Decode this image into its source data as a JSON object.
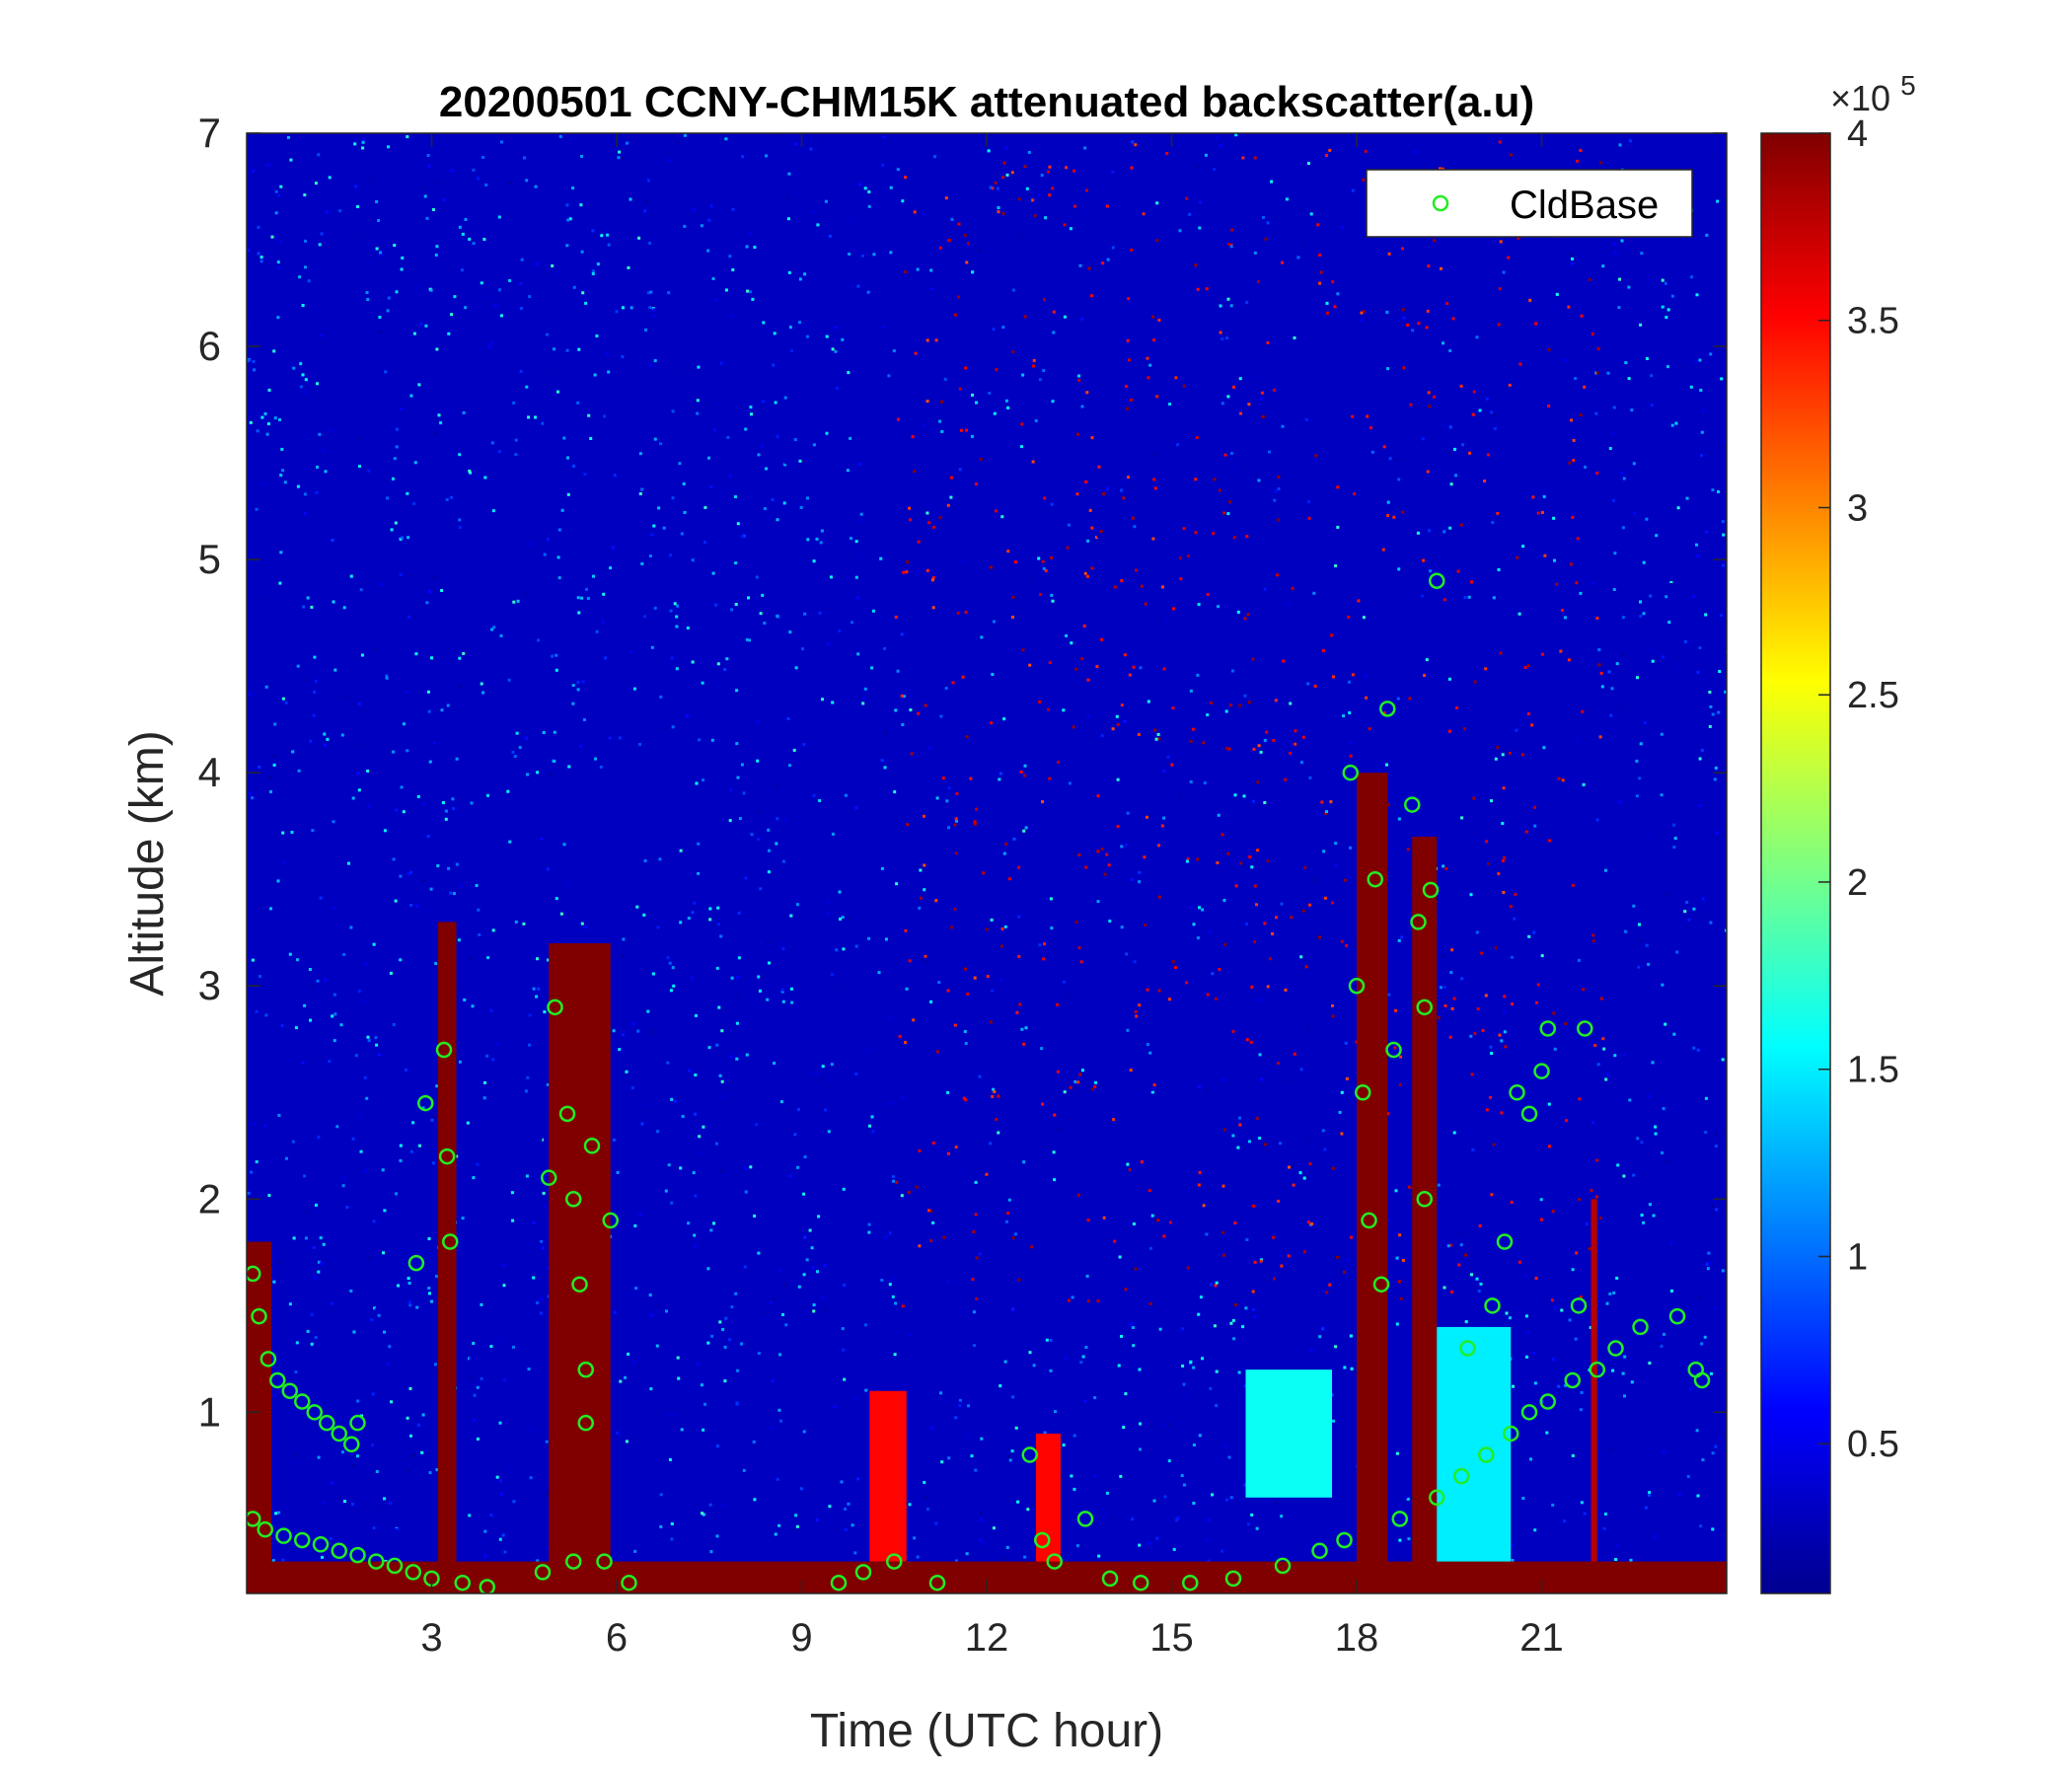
{
  "chart_data": {
    "type": "heatmap",
    "title": "20200501 CCNY-CHM15K attenuated backscatter(a.u)",
    "xlabel": "Time (UTC hour)",
    "ylabel": "Altitude (km)",
    "xlim": [
      0,
      24
    ],
    "ylim": [
      0.15,
      7
    ],
    "xticks": [
      3,
      6,
      9,
      12,
      15,
      18,
      21
    ],
    "xtick_labels": [
      "3",
      "6",
      "9",
      "12",
      "15",
      "18",
      "21"
    ],
    "yticks": [
      1,
      2,
      3,
      4,
      5,
      6,
      7
    ],
    "ytick_labels": [
      "1",
      "2",
      "3",
      "4",
      "5",
      "6",
      "7"
    ],
    "colormap": "jet",
    "colorbar": {
      "clim": [
        0.1,
        4
      ],
      "ticks": [
        0.5,
        1,
        1.5,
        2,
        2.5,
        3,
        3.5,
        4
      ],
      "tick_labels": [
        "0.5",
        "1",
        "1.5",
        "2",
        "2.5",
        "3",
        "3.5",
        "4"
      ],
      "exponent_base": "×10",
      "exponent_power": "5"
    },
    "legend": {
      "position": "top-right",
      "entries": [
        "CldBase"
      ],
      "marker": "open circle",
      "color": "#22ee22"
    },
    "grid": false,
    "background_level": 0.35,
    "high_noise_region": {
      "x": [
        10.5,
        22
      ],
      "y": [
        1.5,
        7
      ],
      "level": 3.2
    },
    "surface_layer": {
      "y": [
        0.15,
        0.3
      ],
      "level": 4
    },
    "plumes": [
      {
        "x": [
          0.0,
          0.4
        ],
        "y": [
          0.15,
          1.8
        ],
        "level": 4
      },
      {
        "x": [
          3.1,
          3.4
        ],
        "y": [
          0.15,
          3.3
        ],
        "level": 4
      },
      {
        "x": [
          4.9,
          5.9
        ],
        "y": [
          0.15,
          3.2
        ],
        "level": 4
      },
      {
        "x": [
          10.1,
          10.7
        ],
        "y": [
          0.3,
          1.1
        ],
        "level": 3.5
      },
      {
        "x": [
          12.8,
          13.2
        ],
        "y": [
          0.15,
          0.9
        ],
        "level": 3.5
      },
      {
        "x": [
          16.2,
          17.6
        ],
        "y": [
          0.6,
          1.2
        ],
        "level": 1.6
      },
      {
        "x": [
          18.0,
          18.5
        ],
        "y": [
          0.15,
          4.0
        ],
        "level": 4
      },
      {
        "x": [
          18.9,
          19.3
        ],
        "y": [
          0.15,
          3.7
        ],
        "level": 4
      },
      {
        "x": [
          19.3,
          20.5
        ],
        "y": [
          0.15,
          1.4
        ],
        "level": 1.5
      },
      {
        "x": [
          21.8,
          21.9
        ],
        "y": [
          0.15,
          2.0
        ],
        "level": 3.8
      }
    ],
    "cloud_base": [
      {
        "x": 0.1,
        "y": 1.65
      },
      {
        "x": 0.2,
        "y": 1.45
      },
      {
        "x": 0.35,
        "y": 1.25
      },
      {
        "x": 0.5,
        "y": 1.15
      },
      {
        "x": 0.7,
        "y": 1.1
      },
      {
        "x": 0.9,
        "y": 1.05
      },
      {
        "x": 1.1,
        "y": 1.0
      },
      {
        "x": 1.3,
        "y": 0.95
      },
      {
        "x": 1.5,
        "y": 0.9
      },
      {
        "x": 1.7,
        "y": 0.85
      },
      {
        "x": 1.8,
        "y": 0.95
      },
      {
        "x": 0.1,
        "y": 0.5
      },
      {
        "x": 0.3,
        "y": 0.45
      },
      {
        "x": 0.6,
        "y": 0.42
      },
      {
        "x": 0.9,
        "y": 0.4
      },
      {
        "x": 1.2,
        "y": 0.38
      },
      {
        "x": 1.5,
        "y": 0.35
      },
      {
        "x": 1.8,
        "y": 0.33
      },
      {
        "x": 2.1,
        "y": 0.3
      },
      {
        "x": 2.4,
        "y": 0.28
      },
      {
        "x": 2.7,
        "y": 0.25
      },
      {
        "x": 3.0,
        "y": 0.22
      },
      {
        "x": 3.5,
        "y": 0.2
      },
      {
        "x": 3.9,
        "y": 0.18
      },
      {
        "x": 3.2,
        "y": 2.7
      },
      {
        "x": 3.25,
        "y": 2.2
      },
      {
        "x": 3.3,
        "y": 1.8
      },
      {
        "x": 2.9,
        "y": 2.45
      },
      {
        "x": 2.75,
        "y": 1.7
      },
      {
        "x": 5.0,
        "y": 2.9
      },
      {
        "x": 5.2,
        "y": 2.4
      },
      {
        "x": 5.3,
        "y": 2.0
      },
      {
        "x": 5.4,
        "y": 1.6
      },
      {
        "x": 5.5,
        "y": 1.2
      },
      {
        "x": 5.5,
        "y": 0.95
      },
      {
        "x": 5.9,
        "y": 1.9
      },
      {
        "x": 5.6,
        "y": 2.25
      },
      {
        "x": 4.9,
        "y": 2.1
      },
      {
        "x": 4.8,
        "y": 0.25
      },
      {
        "x": 5.3,
        "y": 0.3
      },
      {
        "x": 5.8,
        "y": 0.3
      },
      {
        "x": 6.2,
        "y": 0.2
      },
      {
        "x": 9.6,
        "y": 0.2
      },
      {
        "x": 10.0,
        "y": 0.25
      },
      {
        "x": 10.5,
        "y": 0.3
      },
      {
        "x": 11.2,
        "y": 0.2
      },
      {
        "x": 12.7,
        "y": 0.8
      },
      {
        "x": 12.9,
        "y": 0.4
      },
      {
        "x": 13.1,
        "y": 0.3
      },
      {
        "x": 13.6,
        "y": 0.5
      },
      {
        "x": 14.0,
        "y": 0.22
      },
      {
        "x": 14.5,
        "y": 0.2
      },
      {
        "x": 15.3,
        "y": 0.2
      },
      {
        "x": 16.0,
        "y": 0.22
      },
      {
        "x": 16.8,
        "y": 0.28
      },
      {
        "x": 17.4,
        "y": 0.35
      },
      {
        "x": 17.8,
        "y": 0.4
      },
      {
        "x": 17.9,
        "y": 4.0
      },
      {
        "x": 18.0,
        "y": 3.0
      },
      {
        "x": 18.1,
        "y": 2.5
      },
      {
        "x": 18.2,
        "y": 1.9
      },
      {
        "x": 18.3,
        "y": 3.5
      },
      {
        "x": 18.5,
        "y": 4.3
      },
      {
        "x": 18.6,
        "y": 2.7
      },
      {
        "x": 18.4,
        "y": 1.6
      },
      {
        "x": 18.9,
        "y": 3.85
      },
      {
        "x": 19.0,
        "y": 3.3
      },
      {
        "x": 19.1,
        "y": 2.9
      },
      {
        "x": 19.2,
        "y": 3.45
      },
      {
        "x": 19.3,
        "y": 4.9
      },
      {
        "x": 19.1,
        "y": 2.0
      },
      {
        "x": 18.7,
        "y": 0.5
      },
      {
        "x": 19.3,
        "y": 0.6
      },
      {
        "x": 19.7,
        "y": 0.7
      },
      {
        "x": 20.1,
        "y": 0.8
      },
      {
        "x": 20.5,
        "y": 0.9
      },
      {
        "x": 20.8,
        "y": 1.0
      },
      {
        "x": 21.1,
        "y": 1.05
      },
      {
        "x": 21.5,
        "y": 1.15
      },
      {
        "x": 21.9,
        "y": 1.2
      },
      {
        "x": 22.2,
        "y": 1.3
      },
      {
        "x": 22.6,
        "y": 1.4
      },
      {
        "x": 23.2,
        "y": 1.45
      },
      {
        "x": 23.5,
        "y": 1.2
      },
      {
        "x": 23.6,
        "y": 1.15
      },
      {
        "x": 20.6,
        "y": 2.5
      },
      {
        "x": 20.8,
        "y": 2.4
      },
      {
        "x": 21.0,
        "y": 2.6
      },
      {
        "x": 21.1,
        "y": 2.8
      },
      {
        "x": 21.7,
        "y": 2.8
      },
      {
        "x": 20.4,
        "y": 1.8
      },
      {
        "x": 20.2,
        "y": 1.5
      },
      {
        "x": 19.8,
        "y": 1.3
      },
      {
        "x": 21.6,
        "y": 1.5
      }
    ]
  }
}
